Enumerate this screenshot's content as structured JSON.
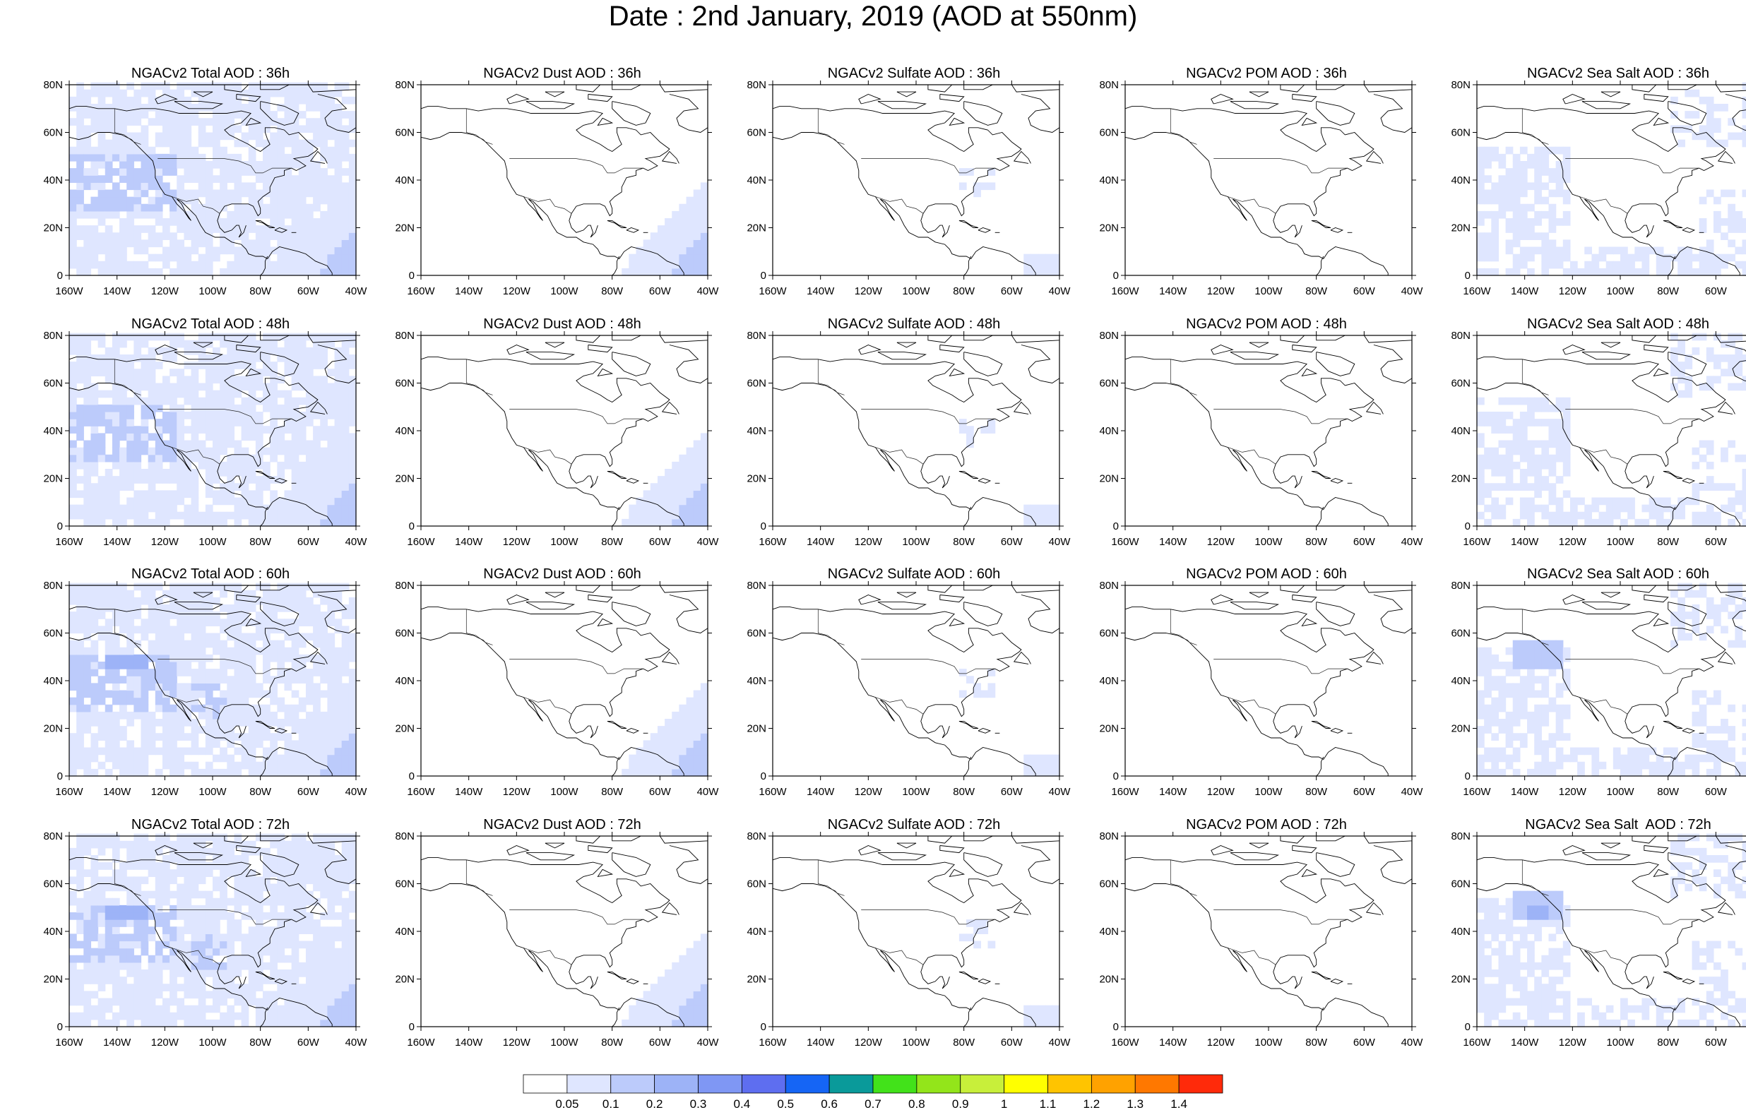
{
  "title": "Date : 2nd January, 2019 (AOD at 550nm)",
  "panels": [
    {
      "title": "NGACv2 Total AOD : 36h",
      "kind": "total",
      "t": 0
    },
    {
      "title": "NGACv2 Dust AOD : 36h",
      "kind": "dust",
      "t": 0
    },
    {
      "title": "NGACv2 Sulfate AOD : 36h",
      "kind": "sulfate",
      "t": 0
    },
    {
      "title": "NGACv2 POM AOD : 36h",
      "kind": "pom",
      "t": 0
    },
    {
      "title": "NGACv2 Sea Salt AOD : 36h",
      "kind": "seasalt",
      "t": 0
    },
    {
      "title": "NGACv2 Total AOD : 48h",
      "kind": "total",
      "t": 1
    },
    {
      "title": "NGACv2 Dust AOD : 48h",
      "kind": "dust",
      "t": 1
    },
    {
      "title": "NGACv2 Sulfate AOD : 48h",
      "kind": "sulfate",
      "t": 1
    },
    {
      "title": "NGACv2 POM AOD : 48h",
      "kind": "pom",
      "t": 1
    },
    {
      "title": "NGACv2 Sea Salt AOD : 48h",
      "kind": "seasalt",
      "t": 1
    },
    {
      "title": "NGACv2 Total AOD : 60h",
      "kind": "total",
      "t": 2
    },
    {
      "title": "NGACv2 Dust AOD : 60h",
      "kind": "dust",
      "t": 2
    },
    {
      "title": "NGACv2 Sulfate AOD : 60h",
      "kind": "sulfate",
      "t": 2
    },
    {
      "title": "NGACv2 POM AOD : 60h",
      "kind": "pom",
      "t": 2
    },
    {
      "title": "NGACv2 Sea Salt AOD : 60h",
      "kind": "seasalt",
      "t": 2
    },
    {
      "title": "NGACv2 Total AOD : 72h",
      "kind": "total",
      "t": 3
    },
    {
      "title": "NGACv2 Dust AOD : 72h",
      "kind": "dust",
      "t": 3
    },
    {
      "title": "NGACv2 Sulfate AOD : 72h",
      "kind": "sulfate",
      "t": 3
    },
    {
      "title": "NGACv2 POM AOD : 72h",
      "kind": "pom",
      "t": 3
    },
    {
      "title": "NGACv2 Sea Salt  AOD : 72h",
      "kind": "seasalt",
      "t": 3
    }
  ],
  "lat_ticks": [
    "0",
    "20N",
    "40N",
    "60N",
    "80N"
  ],
  "lon_ticks": [
    "160W",
    "140W",
    "120W",
    "100W",
    "80W",
    "60W",
    "40W"
  ],
  "lat_range": [
    0,
    80
  ],
  "lon_range": [
    -160,
    -40
  ],
  "colorbar": {
    "labels": [
      "0.05",
      "0.1",
      "0.2",
      "0.3",
      "0.4",
      "0.5",
      "0.6",
      "0.7",
      "0.8",
      "0.9",
      "1",
      "1.1",
      "1.2",
      "1.3",
      "1.4"
    ],
    "colors": [
      "#ffffff",
      "#dfe6ff",
      "#bccbfb",
      "#9db3f7",
      "#7f97f4",
      "#5e6ef0",
      "#1565f5",
      "#0a9a9a",
      "#42e21a",
      "#93e51a",
      "#c8ef3a",
      "#ffff00",
      "#ffc400",
      "#ffa200",
      "#ff7800",
      "#ff2a0a"
    ]
  }
}
